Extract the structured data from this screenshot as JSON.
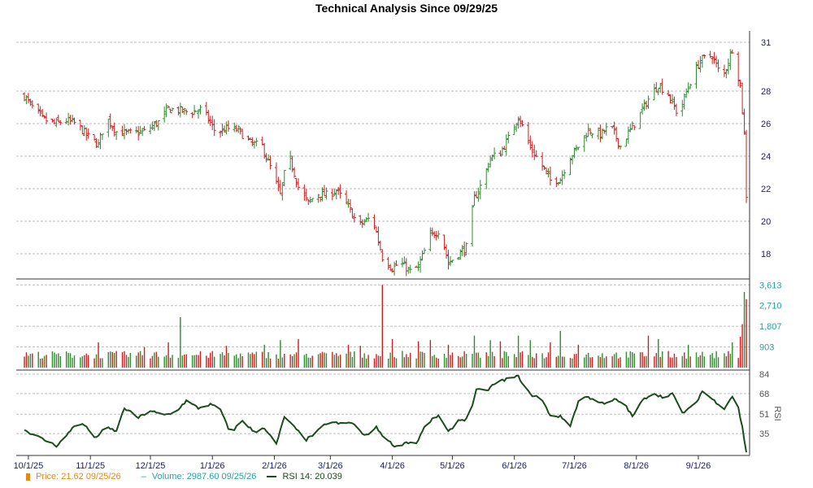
{
  "title": "Technical Analysis Since 09/29/25",
  "colors": {
    "up": "#2e8b2e",
    "down": "#cc1f1f",
    "price_axis": "#1a1a7a",
    "volume_axis": "#2aa0a0",
    "rsi": "#1b4d1b",
    "rsi_axis": "#555555",
    "price_legend": "#e08a1e"
  },
  "legend": {
    "price_label": "Price: 21.62  09/25/26",
    "volume_label": "Volume: 2987.60  09/25/26",
    "rsi_label": "RSI 14: 20.039"
  },
  "chart_data": [
    {
      "type": "ohlc",
      "name": "price",
      "ylim": [
        16.5,
        31.5
      ],
      "yticks": [
        18,
        20,
        22,
        24,
        26,
        28,
        31
      ],
      "dates": [
        "10/1/25",
        "11/1/25",
        "12/1/25",
        "1/1/26",
        "2/1/26",
        "3/1/26",
        "4/1/26",
        "5/1/26",
        "6/1/26",
        "7/1/26",
        "8/1/26",
        "9/1/26"
      ],
      "anchors": [
        [
          "9/29/25",
          27.7
        ],
        [
          "10/3/25",
          27.0
        ],
        [
          "10/8/25",
          26.3
        ],
        [
          "10/14/25",
          26.0
        ],
        [
          "10/20/25",
          26.2
        ],
        [
          "10/25/25",
          26.0
        ],
        [
          "10/30/25",
          25.3
        ],
        [
          "11/5/25",
          24.7
        ],
        [
          "11/9/25",
          26.4
        ],
        [
          "11/14/25",
          25.5
        ],
        [
          "11/20/25",
          25.4
        ],
        [
          "11/28/25",
          25.5
        ],
        [
          "12/5/25",
          26.1
        ],
        [
          "12/10/25",
          26.9
        ],
        [
          "12/16/25",
          26.8
        ],
        [
          "12/21/25",
          26.7
        ],
        [
          "12/27/25",
          26.9
        ],
        [
          "1/3/26",
          25.4
        ],
        [
          "1/8/26",
          25.7
        ],
        [
          "1/14/26",
          25.6
        ],
        [
          "1/20/26",
          24.8
        ],
        [
          "1/26/26",
          24.6
        ],
        [
          "1/31/26",
          23.0
        ],
        [
          "2/4/26",
          21.6
        ],
        [
          "2/8/26",
          24.2
        ],
        [
          "2/13/26",
          22.1
        ],
        [
          "2/18/26",
          21.1
        ],
        [
          "2/22/26",
          21.7
        ],
        [
          "2/27/26",
          21.6
        ],
        [
          "3/4/26",
          21.9
        ],
        [
          "3/10/26",
          20.9
        ],
        [
          "3/15/26",
          19.7
        ],
        [
          "3/22/26",
          20.3
        ],
        [
          "3/27/26",
          17.8
        ],
        [
          "4/1/26",
          17.1
        ],
        [
          "4/5/26",
          17.5
        ],
        [
          "4/10/26",
          16.9
        ],
        [
          "4/14/26",
          17.2
        ],
        [
          "4/20/26",
          19.1
        ],
        [
          "4/25/26",
          19.5
        ],
        [
          "4/29/26",
          17.4
        ],
        [
          "5/3/26",
          17.9
        ],
        [
          "5/8/26",
          18.4
        ],
        [
          "5/12/26",
          21.4
        ],
        [
          "5/16/26",
          22.4
        ],
        [
          "5/20/26",
          23.9
        ],
        [
          "5/25/26",
          24.2
        ],
        [
          "5/30/26",
          25.3
        ],
        [
          "6/3/26",
          26.5
        ],
        [
          "6/9/26",
          24.5
        ],
        [
          "6/14/26",
          23.6
        ],
        [
          "6/19/26",
          22.5
        ],
        [
          "6/24/26",
          22.6
        ],
        [
          "6/28/26",
          23.8
        ],
        [
          "7/3/26",
          24.6
        ],
        [
          "7/8/26",
          25.6
        ],
        [
          "7/14/26",
          25.3
        ],
        [
          "7/19/26",
          25.9
        ],
        [
          "7/24/26",
          24.6
        ],
        [
          "7/28/26",
          25.4
        ],
        [
          "8/2/26",
          26.4
        ],
        [
          "8/7/26",
          27.5
        ],
        [
          "8/12/26",
          28.4
        ],
        [
          "8/17/26",
          27.8
        ],
        [
          "8/22/26",
          26.5
        ],
        [
          "8/27/26",
          28.3
        ],
        [
          "9/2/26",
          29.9
        ],
        [
          "9/8/26",
          30.2
        ],
        [
          "9/13/26",
          28.7
        ],
        [
          "9/18/26",
          30.6
        ],
        [
          "9/22/26",
          28.3
        ],
        [
          "9/24/26",
          25.3
        ],
        [
          "9/25/26",
          21.6
        ]
      ]
    },
    {
      "type": "bar",
      "name": "volume",
      "ylim": [
        0,
        3800
      ],
      "yticks": [
        903,
        1807,
        2710,
        3613
      ],
      "typical": 560,
      "spikes": [
        [
          "11/1/25",
          1150
        ],
        [
          "11/5/25",
          1100
        ],
        [
          "11/28/25",
          900
        ],
        [
          "12/10/25",
          1100
        ],
        [
          "12/16/25",
          2200
        ],
        [
          "1/8/26",
          950
        ],
        [
          "1/27/26",
          1000
        ],
        [
          "2/4/26",
          1200
        ],
        [
          "2/8/26",
          1300
        ],
        [
          "2/13/26",
          1250
        ],
        [
          "2/22/26",
          1050
        ],
        [
          "3/10/26",
          1000
        ],
        [
          "3/16/26",
          950
        ],
        [
          "3/27/26",
          3613
        ],
        [
          "4/1/26",
          1250
        ],
        [
          "4/14/26",
          1150
        ],
        [
          "4/20/26",
          1200
        ],
        [
          "4/29/26",
          1000
        ],
        [
          "5/12/26",
          1400
        ],
        [
          "5/16/26",
          1800
        ],
        [
          "5/20/26",
          1200
        ],
        [
          "5/25/26",
          1150
        ],
        [
          "6/3/26",
          1400
        ],
        [
          "6/9/26",
          1200
        ],
        [
          "6/19/26",
          1100
        ],
        [
          "6/24/26",
          1600
        ],
        [
          "6/28/26",
          1200
        ],
        [
          "7/3/26",
          1000
        ],
        [
          "8/2/26",
          1100
        ],
        [
          "8/7/26",
          1400
        ],
        [
          "8/12/26",
          1250
        ],
        [
          "8/27/26",
          1000
        ],
        [
          "9/18/26",
          1100
        ],
        [
          "9/22/26",
          1350
        ],
        [
          "9/23/26",
          1900
        ],
        [
          "9/24/26",
          3300
        ],
        [
          "9/25/26",
          2988
        ]
      ]
    },
    {
      "type": "line",
      "name": "RSI 14",
      "ylabel": "RSI",
      "ylim": [
        17,
        86
      ],
      "yticks": [
        35,
        51,
        68,
        84
      ],
      "anchors": [
        [
          "9/29/25",
          38
        ],
        [
          "10/5/25",
          33
        ],
        [
          "10/10/25",
          29
        ],
        [
          "10/15/25",
          25
        ],
        [
          "10/20/25",
          33
        ],
        [
          "10/25/25",
          44
        ],
        [
          "10/30/25",
          41
        ],
        [
          "11/3/25",
          31
        ],
        [
          "11/9/25",
          40
        ],
        [
          "11/14/25",
          37
        ],
        [
          "11/18/25",
          56
        ],
        [
          "11/25/25",
          48
        ],
        [
          "12/1/25",
          54
        ],
        [
          "12/7/25",
          50
        ],
        [
          "12/13/25",
          52
        ],
        [
          "12/19/25",
          62
        ],
        [
          "12/25/25",
          56
        ],
        [
          "12/31/25",
          59
        ],
        [
          "1/5/26",
          55
        ],
        [
          "1/10/26",
          35
        ],
        [
          "1/16/26",
          46
        ],
        [
          "1/22/26",
          36
        ],
        [
          "1/27/26",
          40
        ],
        [
          "2/2/26",
          26
        ],
        [
          "2/6/26",
          49
        ],
        [
          "2/11/26",
          40
        ],
        [
          "2/17/26",
          30
        ],
        [
          "2/22/26",
          36
        ],
        [
          "2/28/26",
          45
        ],
        [
          "3/6/26",
          43
        ],
        [
          "3/12/26",
          44
        ],
        [
          "3/18/26",
          33
        ],
        [
          "3/24/26",
          40
        ],
        [
          "3/29/26",
          30
        ],
        [
          "4/3/26",
          24
        ],
        [
          "4/8/26",
          28
        ],
        [
          "4/13/26",
          27
        ],
        [
          "4/18/26",
          43
        ],
        [
          "4/24/26",
          50
        ],
        [
          "4/29/26",
          36
        ],
        [
          "5/4/26",
          46
        ],
        [
          "5/9/26",
          47
        ],
        [
          "5/13/26",
          71
        ],
        [
          "5/18/26",
          70
        ],
        [
          "5/22/26",
          76
        ],
        [
          "5/28/26",
          80
        ],
        [
          "6/3/26",
          82
        ],
        [
          "6/9/26",
          67
        ],
        [
          "6/14/26",
          65
        ],
        [
          "6/19/26",
          50
        ],
        [
          "6/24/26",
          49
        ],
        [
          "6/29/26",
          42
        ],
        [
          "7/4/26",
          66
        ],
        [
          "7/10/26",
          64
        ],
        [
          "7/16/26",
          59
        ],
        [
          "7/21/26",
          63
        ],
        [
          "7/26/26",
          60
        ],
        [
          "7/30/26",
          49
        ],
        [
          "8/4/26",
          62
        ],
        [
          "8/9/26",
          69
        ],
        [
          "8/14/26",
          65
        ],
        [
          "8/19/26",
          68
        ],
        [
          "8/24/26",
          52
        ],
        [
          "8/30/26",
          58
        ],
        [
          "9/3/26",
          70
        ],
        [
          "9/9/26",
          62
        ],
        [
          "9/14/26",
          56
        ],
        [
          "9/18/26",
          66
        ],
        [
          "9/21/26",
          56
        ],
        [
          "9/23/26",
          40
        ],
        [
          "9/24/26",
          30
        ],
        [
          "9/25/26",
          20
        ]
      ]
    }
  ]
}
